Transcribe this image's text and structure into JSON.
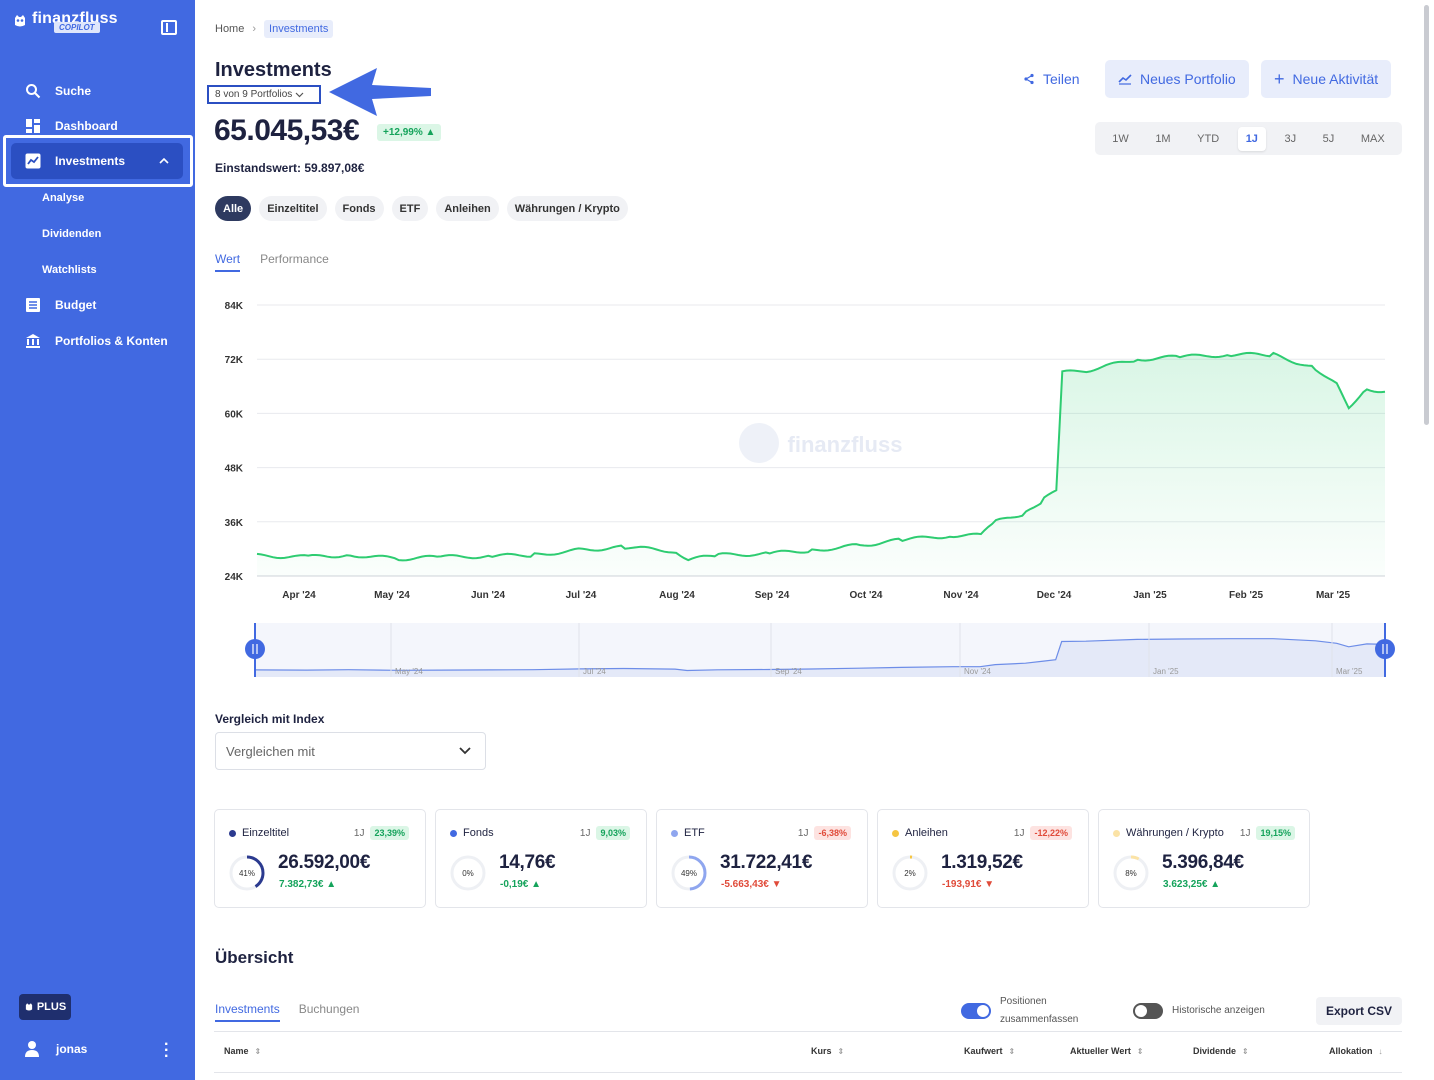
{
  "brand": {
    "name": "finanzfluss",
    "tag": "COPILOT"
  },
  "sidebar": {
    "items": [
      {
        "label": "Suche",
        "icon": "search-icon"
      },
      {
        "label": "Dashboard",
        "icon": "dashboard-icon"
      },
      {
        "label": "Investments",
        "icon": "chart-line-icon",
        "active": true
      },
      {
        "label": "Budget",
        "icon": "list-icon"
      },
      {
        "label": "Portfolios & Konten",
        "icon": "bank-icon"
      }
    ],
    "subitems": [
      "Analyse",
      "Dividenden",
      "Watchlists"
    ],
    "plus": "PLUS",
    "user": "jonas"
  },
  "breadcrumb": {
    "home": "Home",
    "current": "Investments"
  },
  "page": {
    "title": "Investments",
    "portfolio_select": "8 von 9 Portfolios",
    "total_value": "65.045,53€",
    "total_pct": "+12,99%",
    "cost_basis": "Einstandswert: 59.897,08€"
  },
  "actions": {
    "share": "Teilen",
    "new_portfolio": "Neues Portfolio",
    "new_activity": "Neue Aktivität"
  },
  "periods": [
    "1W",
    "1M",
    "YTD",
    "1J",
    "3J",
    "5J",
    "MAX"
  ],
  "active_period": "1J",
  "filters": [
    "Alle",
    "Einzeltitel",
    "Fonds",
    "ETF",
    "Anleihen",
    "Währungen / Krypto"
  ],
  "chart_tabs": [
    "Wert",
    "Performance"
  ],
  "chart_data": {
    "type": "area",
    "watermark": "finanzfluss",
    "y_ticks": [
      "84K",
      "72K",
      "60K",
      "48K",
      "36K",
      "24K"
    ],
    "ylim": [
      24000,
      84000
    ],
    "x_ticks": [
      "Apr '24",
      "May '24",
      "Jun '24",
      "Jul '24",
      "Aug '24",
      "Sep '24",
      "Oct '24",
      "Nov '24",
      "Dec '24",
      "Jan '25",
      "Feb '25",
      "Mar '25"
    ],
    "navigator_ticks": [
      "May '24",
      "Jul '24",
      "Sep '24",
      "Nov '24",
      "Jan '25",
      "Mar '25"
    ],
    "color": "#2ecc71",
    "series": [
      {
        "x": "2024-03-15",
        "y": 28500
      },
      {
        "x": "2024-04-01",
        "y": 28200
      },
      {
        "x": "2024-04-15",
        "y": 28700
      },
      {
        "x": "2024-05-01",
        "y": 27800
      },
      {
        "x": "2024-05-15",
        "y": 28200
      },
      {
        "x": "2024-06-01",
        "y": 28400
      },
      {
        "x": "2024-06-15",
        "y": 28700
      },
      {
        "x": "2024-07-01",
        "y": 29800
      },
      {
        "x": "2024-07-15",
        "y": 30400
      },
      {
        "x": "2024-08-01",
        "y": 29500
      },
      {
        "x": "2024-08-05",
        "y": 27600
      },
      {
        "x": "2024-08-15",
        "y": 28600
      },
      {
        "x": "2024-09-01",
        "y": 29000
      },
      {
        "x": "2024-09-15",
        "y": 29700
      },
      {
        "x": "2024-10-01",
        "y": 30800
      },
      {
        "x": "2024-10-15",
        "y": 32000
      },
      {
        "x": "2024-11-01",
        "y": 33000
      },
      {
        "x": "2024-11-10",
        "y": 33000
      },
      {
        "x": "2024-11-15",
        "y": 36000
      },
      {
        "x": "2024-11-25",
        "y": 38000
      },
      {
        "x": "2024-12-01",
        "y": 41000
      },
      {
        "x": "2024-12-05",
        "y": 43000
      },
      {
        "x": "2024-12-07",
        "y": 69000
      },
      {
        "x": "2024-12-15",
        "y": 69500
      },
      {
        "x": "2025-01-01",
        "y": 72000
      },
      {
        "x": "2025-01-15",
        "y": 72500
      },
      {
        "x": "2025-02-01",
        "y": 73000
      },
      {
        "x": "2025-02-15",
        "y": 73000
      },
      {
        "x": "2025-03-01",
        "y": 70000
      },
      {
        "x": "2025-03-08",
        "y": 66500
      },
      {
        "x": "2025-03-12",
        "y": 61500
      },
      {
        "x": "2025-03-18",
        "y": 65500
      },
      {
        "x": "2025-03-24",
        "y": 64800
      }
    ]
  },
  "compare": {
    "label": "Vergleich mit Index",
    "placeholder": "Vergleichen mit"
  },
  "asset_cards": [
    {
      "name": "Einzeltitel",
      "period": "1J",
      "perf": "23,39%",
      "perf_dir": "pos",
      "share": "41%",
      "share_val": 0.41,
      "value": "26.592,00€",
      "delta": "7.382,73€",
      "color": "#2b3a8f"
    },
    {
      "name": "Fonds",
      "period": "1J",
      "perf": "9,03%",
      "perf_dir": "pos",
      "share": "0%",
      "share_val": 0.0,
      "value": "14,76€",
      "delta": "-0,19€",
      "color": "#4169e1"
    },
    {
      "name": "ETF",
      "period": "1J",
      "perf": "-6,38%",
      "perf_dir": "neg",
      "share": "49%",
      "share_val": 0.49,
      "value": "31.722,41€",
      "delta": "-5.663,43€",
      "color": "#8fa6ef"
    },
    {
      "name": "Anleihen",
      "period": "1J",
      "perf": "-12,22%",
      "perf_dir": "neg",
      "share": "2%",
      "share_val": 0.02,
      "value": "1.319,52€",
      "delta": "-193,91€",
      "color": "#f5c542"
    },
    {
      "name": "Währungen / Krypto",
      "period": "1J",
      "perf": "19,15%",
      "perf_dir": "pos",
      "share": "8%",
      "share_val": 0.08,
      "value": "5.396,84€",
      "delta": "3.623,25€",
      "color": "#fbe3a6"
    }
  ],
  "overview": {
    "title": "Übersicht",
    "tabs": [
      "Investments",
      "Buchungen"
    ],
    "toggle_summarize": [
      "Positionen",
      "zusammenfassen"
    ],
    "toggle_historic": "Historische anzeigen",
    "export": "Export CSV",
    "columns": [
      "Name",
      "Kurs",
      "Kaufwert",
      "Aktueller Wert",
      "Dividende",
      "Allokation"
    ]
  }
}
